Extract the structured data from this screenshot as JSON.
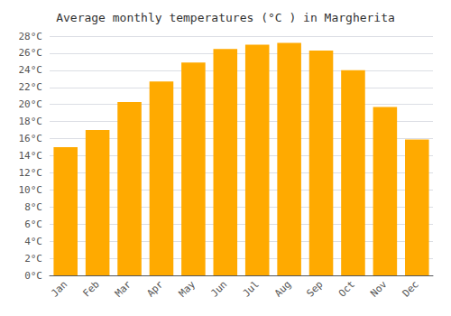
{
  "chart_data": {
    "type": "bar",
    "title": "Average monthly temperatures (°C ) in Margherita",
    "categories": [
      "Jan",
      "Feb",
      "Mar",
      "Apr",
      "May",
      "Jun",
      "Jul",
      "Aug",
      "Sep",
      "Oct",
      "Nov",
      "Dec"
    ],
    "values": [
      15.0,
      17.0,
      20.3,
      22.7,
      24.9,
      26.5,
      27.0,
      27.2,
      26.3,
      24.0,
      19.7,
      15.9
    ],
    "color": "#FFAA00",
    "ylim": [
      0,
      28
    ],
    "yticks": [
      {
        "value": 0,
        "label": "0°C"
      },
      {
        "value": 2,
        "label": "2°C"
      },
      {
        "value": 4,
        "label": "4°C"
      },
      {
        "value": 6,
        "label": "6°C"
      },
      {
        "value": 8,
        "label": "8°C"
      },
      {
        "value": 10,
        "label": "10°C"
      },
      {
        "value": 12,
        "label": "12°C"
      },
      {
        "value": 14,
        "label": "14°C"
      },
      {
        "value": 16,
        "label": "16°C"
      },
      {
        "value": 18,
        "label": "18°C"
      },
      {
        "value": 20,
        "label": "20°C"
      },
      {
        "value": 22,
        "label": "22°C"
      },
      {
        "value": 24,
        "label": "24°C"
      },
      {
        "value": 26,
        "label": "26°C"
      },
      {
        "value": 28,
        "label": "28°C"
      }
    ],
    "grid": true
  }
}
